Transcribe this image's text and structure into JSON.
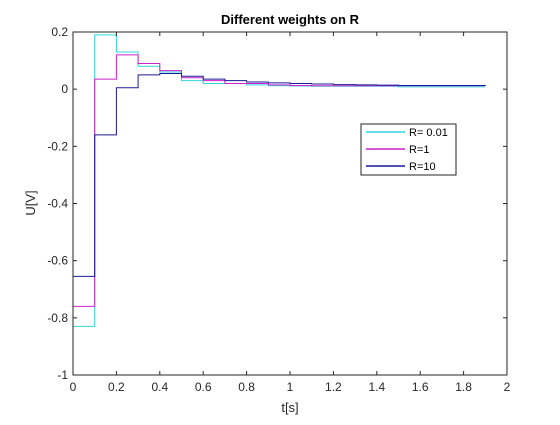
{
  "chart_data": {
    "type": "line",
    "step": true,
    "title": "Different weights on R",
    "xlabel": "t[s]",
    "ylabel": "U[V]",
    "xlim": [
      0,
      2
    ],
    "ylim": [
      -1,
      0.2
    ],
    "xticks": [
      "0",
      "0.2",
      "0.4",
      "0.6",
      "0.8",
      "1",
      "1.2",
      "1.4",
      "1.6",
      "1.8",
      "2"
    ],
    "yticks": [
      "-1",
      "-0.8",
      "-0.6",
      "-0.4",
      "-0.2",
      "0",
      "0.2"
    ],
    "grid": false,
    "legend_position": "right",
    "x": [
      0,
      0.1,
      0.2,
      0.3,
      0.4,
      0.5,
      0.6,
      0.7,
      0.8,
      0.9,
      1.0,
      1.1,
      1.2,
      1.3,
      1.4,
      1.5,
      1.6,
      1.7,
      1.8,
      1.9
    ],
    "series": [
      {
        "name": "R= 0.01",
        "color": "#33d6e0",
        "values": [
          -0.83,
          0.19,
          0.13,
          0.08,
          0.06,
          0.03,
          0.02,
          0.02,
          0.015,
          0.012,
          0.011,
          0.01,
          0.01,
          0.01,
          0.01,
          0.008,
          0.008,
          0.008,
          0.008,
          0.008
        ]
      },
      {
        "name": "R=1",
        "color": "#cc22cc",
        "values": [
          -0.76,
          0.035,
          0.12,
          0.09,
          0.065,
          0.04,
          0.03,
          0.02,
          0.02,
          0.015,
          0.013,
          0.012,
          0.012,
          0.012,
          0.012,
          0.012,
          0.012,
          0.012,
          0.012,
          0.012
        ]
      },
      {
        "name": "R=10",
        "color": "#1a1a99",
        "values": [
          -0.655,
          -0.16,
          0.005,
          0.05,
          0.055,
          0.045,
          0.035,
          0.03,
          0.025,
          0.022,
          0.02,
          0.018,
          0.016,
          0.015,
          0.014,
          0.013,
          0.013,
          0.013,
          0.013,
          0.012
        ]
      }
    ],
    "x_end": 1.9
  }
}
